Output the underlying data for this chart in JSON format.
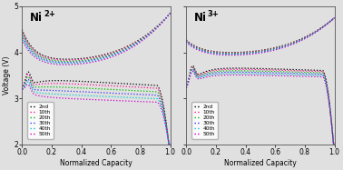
{
  "title_left": "Ni",
  "title_left_super": "2+",
  "title_right": "Ni",
  "title_right_super": "3+",
  "ylabel": "Voltage (V)",
  "xlabel": "Normalized Capacity",
  "ylim": [
    2.0,
    5.0
  ],
  "xlim": [
    0.0,
    1.0
  ],
  "yticks": [
    2,
    3,
    4,
    5
  ],
  "xticks": [
    0.0,
    0.2,
    0.4,
    0.6,
    0.8,
    1.0
  ],
  "legend_labels": [
    "2nd",
    "10th",
    "20th",
    "30th",
    "40th",
    "50th"
  ],
  "colors": [
    "#000000",
    "#ff1493",
    "#00bb00",
    "#3333ff",
    "#00cccc",
    "#cc00cc"
  ],
  "background_color": "#e0e0e0",
  "figsize": [
    3.78,
    1.87
  ],
  "dpi": 100
}
